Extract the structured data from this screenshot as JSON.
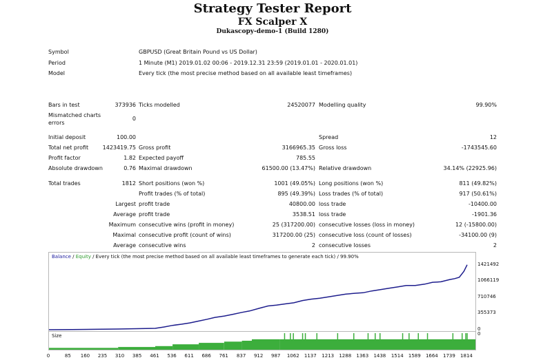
{
  "report": {
    "title": "Strategy Tester Report",
    "expert": "FX Scalper X",
    "server": "Dukascopy-demo-1 (Build 1280)"
  },
  "header": [
    {
      "label": "Symbol",
      "value": "GBPUSD (Great Britain Pound vs US Dollar)"
    },
    {
      "label": "Period",
      "value": "1 Minute (M1) 2019.01.02 00:06 - 2019.12.31 23:59 (2019.01.01 - 2020.01.01)"
    },
    {
      "label": "Model",
      "value": "Every tick (the most precise method based on all available least timeframes)"
    }
  ],
  "stats": {
    "bars_label": "Bars in test",
    "bars_value": "373936",
    "ticks_label": "Ticks modelled",
    "ticks_value": "24520077",
    "quality_label": "Modelling quality",
    "quality_value": "99.90%",
    "mismatch_label": "Mismatched charts errors",
    "mismatch_value": "0",
    "initial_label": "Initial deposit",
    "initial_value": "100.00",
    "spread_label": "Spread",
    "spread_value": "12",
    "netprofit_label": "Total net profit",
    "netprofit_value": "1423419.75",
    "grossprofit_label": "Gross profit",
    "grossprofit_value": "3166965.35",
    "grossloss_label": "Gross loss",
    "grossloss_value": "-1743545.60",
    "pf_label": "Profit factor",
    "pf_value": "1.82",
    "payoff_label": "Expected payoff",
    "payoff_value": "785.55",
    "absdd_label": "Absolute drawdown",
    "absdd_value": "0.76",
    "maxdd_label": "Maximal drawdown",
    "maxdd_value": "61500.00 (13.47%)",
    "reldd_label": "Relative drawdown",
    "reldd_value": "34.14% (22925.96)",
    "trades_label": "Total trades",
    "trades_value": "1812",
    "short_label": "Short positions (won %)",
    "short_value": "1001 (49.05%)",
    "long_label": "Long positions (won %)",
    "long_value": "811 (49.82%)",
    "profit_trades_label": "Profit trades (% of total)",
    "profit_trades_value": "895 (49.39%)",
    "loss_trades_label": "Loss trades (% of total)",
    "loss_trades_value": "917 (50.61%)",
    "largest_label": "Largest",
    "largest_profit_label": "profit trade",
    "largest_profit_value": "40800.00",
    "largest_loss_label": "loss trade",
    "largest_loss_value": "-10400.00",
    "average_label": "Average",
    "average_profit_label": "profit trade",
    "average_profit_value": "3538.51",
    "average_loss_label": "loss trade",
    "average_loss_value": "-1901.36",
    "maximum_label": "Maximum",
    "max_wins_label": "consecutive wins (profit in money)",
    "max_wins_value": "25 (317200.00)",
    "max_losses_label": "consecutive losses (loss in money)",
    "max_losses_value": "12 (-15800.00)",
    "maximal_label": "Maximal",
    "maximal_profit_label": "consecutive profit (count of wins)",
    "maximal_profit_value": "317200.00 (25)",
    "maximal_loss_label": "consecutive loss (count of losses)",
    "maximal_loss_value": "-34100.00 (9)",
    "avg_cons_label": "Average",
    "avg_wins_label": "consecutive wins",
    "avg_wins_value": "2",
    "avg_losses_label": "consecutive losses",
    "avg_losses_value": "2"
  },
  "chart_legend": {
    "balance": "Balance",
    "sep1": " / ",
    "equity": "Equity",
    "rest": " / Every tick (the most precise method based on all available least timeframes to generate each tick) / 99.90%"
  },
  "chart_data": {
    "type": "line",
    "y_ticks": [
      "1421492",
      "1066119",
      "710746",
      "355373",
      "0"
    ],
    "x_ticks": [
      "0",
      "85",
      "160",
      "235",
      "310",
      "385",
      "461",
      "536",
      "611",
      "686",
      "761",
      "837",
      "912",
      "987",
      "1062",
      "1137",
      "1213",
      "1288",
      "1363",
      "1438",
      "1514",
      "1589",
      "1664",
      "1739",
      "1814"
    ],
    "ylim": [
      0,
      1600000
    ],
    "xlim": [
      0,
      1850
    ],
    "series": [
      {
        "name": "Balance",
        "color": "#1c1c8c",
        "x": [
          0,
          100,
          200,
          300,
          400,
          461,
          500,
          536,
          575,
          611,
          650,
          686,
          720,
          761,
          800,
          837,
          870,
          912,
          950,
          987,
          1030,
          1062,
          1100,
          1137,
          1175,
          1213,
          1250,
          1288,
          1330,
          1363,
          1400,
          1438,
          1475,
          1514,
          1550,
          1589,
          1630,
          1664,
          1700,
          1739,
          1760,
          1780,
          1800,
          1814
        ],
        "y": [
          100,
          4000,
          9000,
          15000,
          24000,
          30000,
          60000,
          95000,
          120000,
          150000,
          190000,
          230000,
          270000,
          300000,
          340000,
          380000,
          410000,
          470000,
          520000,
          540000,
          570000,
          590000,
          640000,
          670000,
          690000,
          720000,
          750000,
          780000,
          800000,
          810000,
          850000,
          880000,
          910000,
          940000,
          970000,
          970000,
          1000000,
          1040000,
          1050000,
          1100000,
          1120000,
          1150000,
          1280000,
          1423420
        ]
      }
    ]
  },
  "size_chart": {
    "label": "Size",
    "tick": "0",
    "bars": [
      {
        "x": 0,
        "h": 0.1
      },
      {
        "x": 300,
        "h": 0.15
      },
      {
        "x": 461,
        "h": 0.2
      },
      {
        "x": 536,
        "h": 0.3
      },
      {
        "x": 650,
        "h": 0.38
      },
      {
        "x": 760,
        "h": 0.45
      },
      {
        "x": 837,
        "h": 0.5
      },
      {
        "x": 880,
        "h": 0.58
      },
      {
        "x": 1000,
        "h": 0.58
      }
    ],
    "spikes": [
      1020,
      1045,
      1058,
      1098,
      1110,
      1160,
      1250,
      1320,
      1382,
      1413,
      1434,
      1532,
      1560,
      1600,
      1640,
      1750,
      1790,
      1806,
      1812
    ],
    "color": "#3cae3c"
  }
}
